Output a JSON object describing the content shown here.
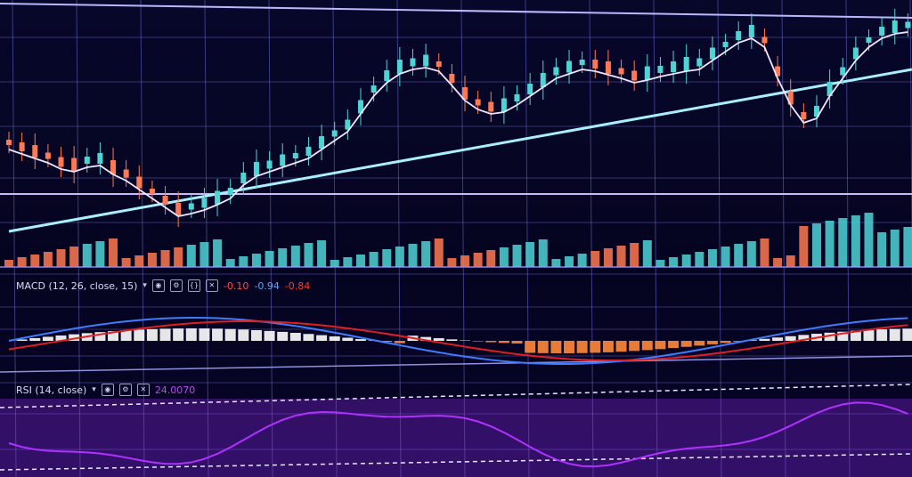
{
  "macd": {
    "title": "MACD (12, 26, close, 15)",
    "values": [
      "-0.10",
      "-0.94",
      "-0.84"
    ],
    "colors": {
      "macd": "#3e7dff",
      "signal": "#e02020",
      "hist_pos": "#ffffff",
      "hist_neg": "#ff8a3a"
    }
  },
  "rsi": {
    "title": "RSI (14, close)",
    "value": "24.0070",
    "color": "#8a2be2"
  },
  "colors": {
    "up_candle": "#4fd4d6",
    "down_candle": "#ff7a52",
    "ma_line": "#f0e4ff",
    "trend_line": "#a8f0ff",
    "grid": "#6a6ad0"
  },
  "icons": [
    "chevron-down-icon",
    "visibility-icon",
    "settings-icon",
    "format-icon",
    "close-icon"
  ]
}
